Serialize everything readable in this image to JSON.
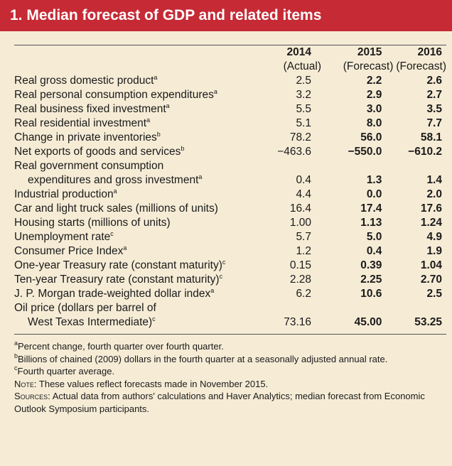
{
  "title": "1. Median forecast of GDP and related items",
  "header": {
    "years": [
      "2014",
      "2015",
      "2016"
    ],
    "types": [
      "(Actual)",
      "(Forecast)",
      "(Forecast)"
    ]
  },
  "rows": [
    {
      "label": "Real gross domestic product",
      "note": "a",
      "v2014": "2.5",
      "v2015": "2.2",
      "v2016": "2.6"
    },
    {
      "label": "Real personal consumption expenditures",
      "note": "a",
      "v2014": "3.2",
      "v2015": "2.9",
      "v2016": "2.7"
    },
    {
      "label": "Real business fixed investment",
      "note": "a",
      "v2014": "5.5",
      "v2015": "3.0",
      "v2016": "3.5"
    },
    {
      "label": "Real residential investment",
      "note": "a",
      "v2014": "5.1",
      "v2015": "8.0",
      "v2016": "7.7"
    },
    {
      "label": "Change in private inventories",
      "note": "b",
      "v2014": "78.2",
      "v2015": "56.0",
      "v2016": "58.1"
    },
    {
      "label": "Net exports of goods and services",
      "note": "b",
      "v2014": "−463.6",
      "v2015": "−550.0",
      "v2016": "−610.2"
    },
    {
      "label": "Real government consumption",
      "label2": "expenditures and gross investment",
      "note": "a",
      "v2014": "0.4",
      "v2015": "1.3",
      "v2016": "1.4"
    },
    {
      "label": "Industrial production",
      "note": "a",
      "v2014": "4.4",
      "v2015": "0.0",
      "v2016": "2.0"
    },
    {
      "label": "Car and light truck sales (millions of units)",
      "note": "",
      "v2014": "16.4",
      "v2015": "17.4",
      "v2016": "17.6"
    },
    {
      "label": "Housing starts (millions of units)",
      "note": "",
      "v2014": "1.00",
      "v2015": "1.13",
      "v2016": "1.24"
    },
    {
      "label": "Unemployment rate",
      "note": "c",
      "v2014": "5.7",
      "v2015": "5.0",
      "v2016": "4.9"
    },
    {
      "label": "Consumer Price Index",
      "note": "a",
      "v2014": "1.2",
      "v2015": "0.4",
      "v2016": "1.9"
    },
    {
      "label": "One-year Treasury rate (constant maturity)",
      "note": "c",
      "v2014": "0.15",
      "v2015": "0.39",
      "v2016": "1.04"
    },
    {
      "label": "Ten-year Treasury rate (constant maturity)",
      "note": "c",
      "v2014": "2.28",
      "v2015": "2.25",
      "v2016": "2.70"
    },
    {
      "label": "J. P. Morgan trade-weighted dollar index",
      "note": "a",
      "v2014": "6.2",
      "v2015": "10.6",
      "v2016": "2.5"
    },
    {
      "label": "Oil price (dollars per barrel of",
      "label2": "West Texas Intermediate)",
      "note": "c",
      "v2014": "73.16",
      "v2015": "45.00",
      "v2016": "53.25"
    }
  ],
  "notes": {
    "a_mark": "a",
    "a_text": "Percent change, fourth quarter over fourth quarter.",
    "b_mark": "b",
    "b_text": "Billions of chained (2009) dollars in the fourth quarter at a seasonally adjusted annual rate.",
    "c_mark": "c",
    "c_text": "Fourth quarter average.",
    "note_label": "Note:",
    "note_text": "These values reflect forecasts made in November 2015.",
    "sources_label": "Sources:",
    "sources_text": "Actual data from authors' calculations and Haver Analytics; median forecast from Economic Outlook Symposium participants."
  },
  "colors": {
    "title_bg": "#c62a35",
    "panel_bg": "#f6ecd6"
  }
}
